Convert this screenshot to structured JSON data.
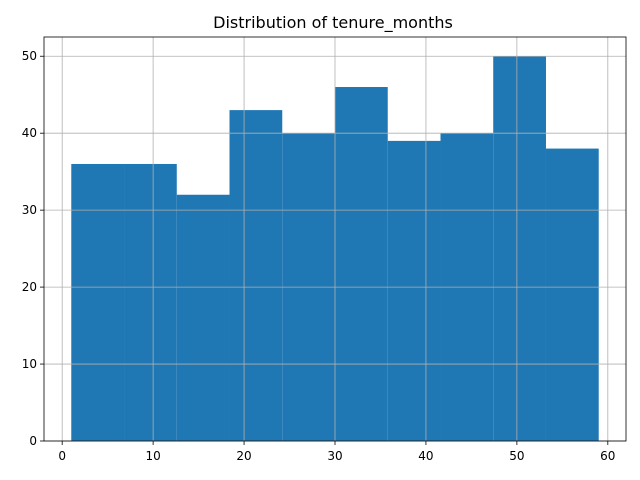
{
  "chart_data": {
    "type": "bar",
    "histogram": true,
    "title": "Distribution of tenure_months",
    "xlabel": "",
    "ylabel": "",
    "bin_edges": [
      1.0,
      6.8,
      12.6,
      18.4,
      24.2,
      30.0,
      35.8,
      41.6,
      47.4,
      53.2,
      59.0
    ],
    "values": [
      36,
      36,
      32,
      43,
      40,
      46,
      39,
      40,
      50,
      38
    ],
    "xlim": [
      -2.0,
      62.0
    ],
    "ylim": [
      0,
      52.5
    ],
    "xticks": [
      0,
      10,
      20,
      30,
      40,
      50,
      60
    ],
    "yticks": [
      0,
      10,
      20,
      30,
      40,
      50
    ],
    "grid": true,
    "bar_color": "#1f77b4"
  }
}
